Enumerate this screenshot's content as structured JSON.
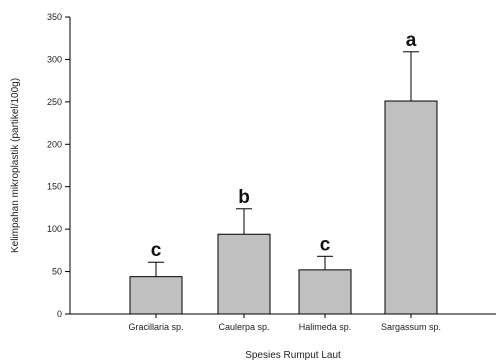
{
  "chart_data": {
    "type": "bar",
    "title": "",
    "xlabel": "Spesies Rumput Laut",
    "ylabel": "Kelimpahan mikroplastik (partikel/100g)",
    "ylim": [
      0,
      350
    ],
    "yticks": [
      "0",
      "50",
      "100",
      "150",
      "200",
      "250",
      "300",
      "350"
    ],
    "categories": [
      "Gracillaria sp.",
      "Caulerpa sp.",
      "Halimeda sp.",
      "Sargassum sp."
    ],
    "values": [
      44,
      94,
      52,
      251
    ],
    "error_upper": [
      61,
      124,
      68,
      309
    ],
    "significance_letters": [
      "c",
      "b",
      "c",
      "a"
    ],
    "bar_color": "#c0c0c0",
    "bar_edge_color": "#000000",
    "grid": false
  }
}
